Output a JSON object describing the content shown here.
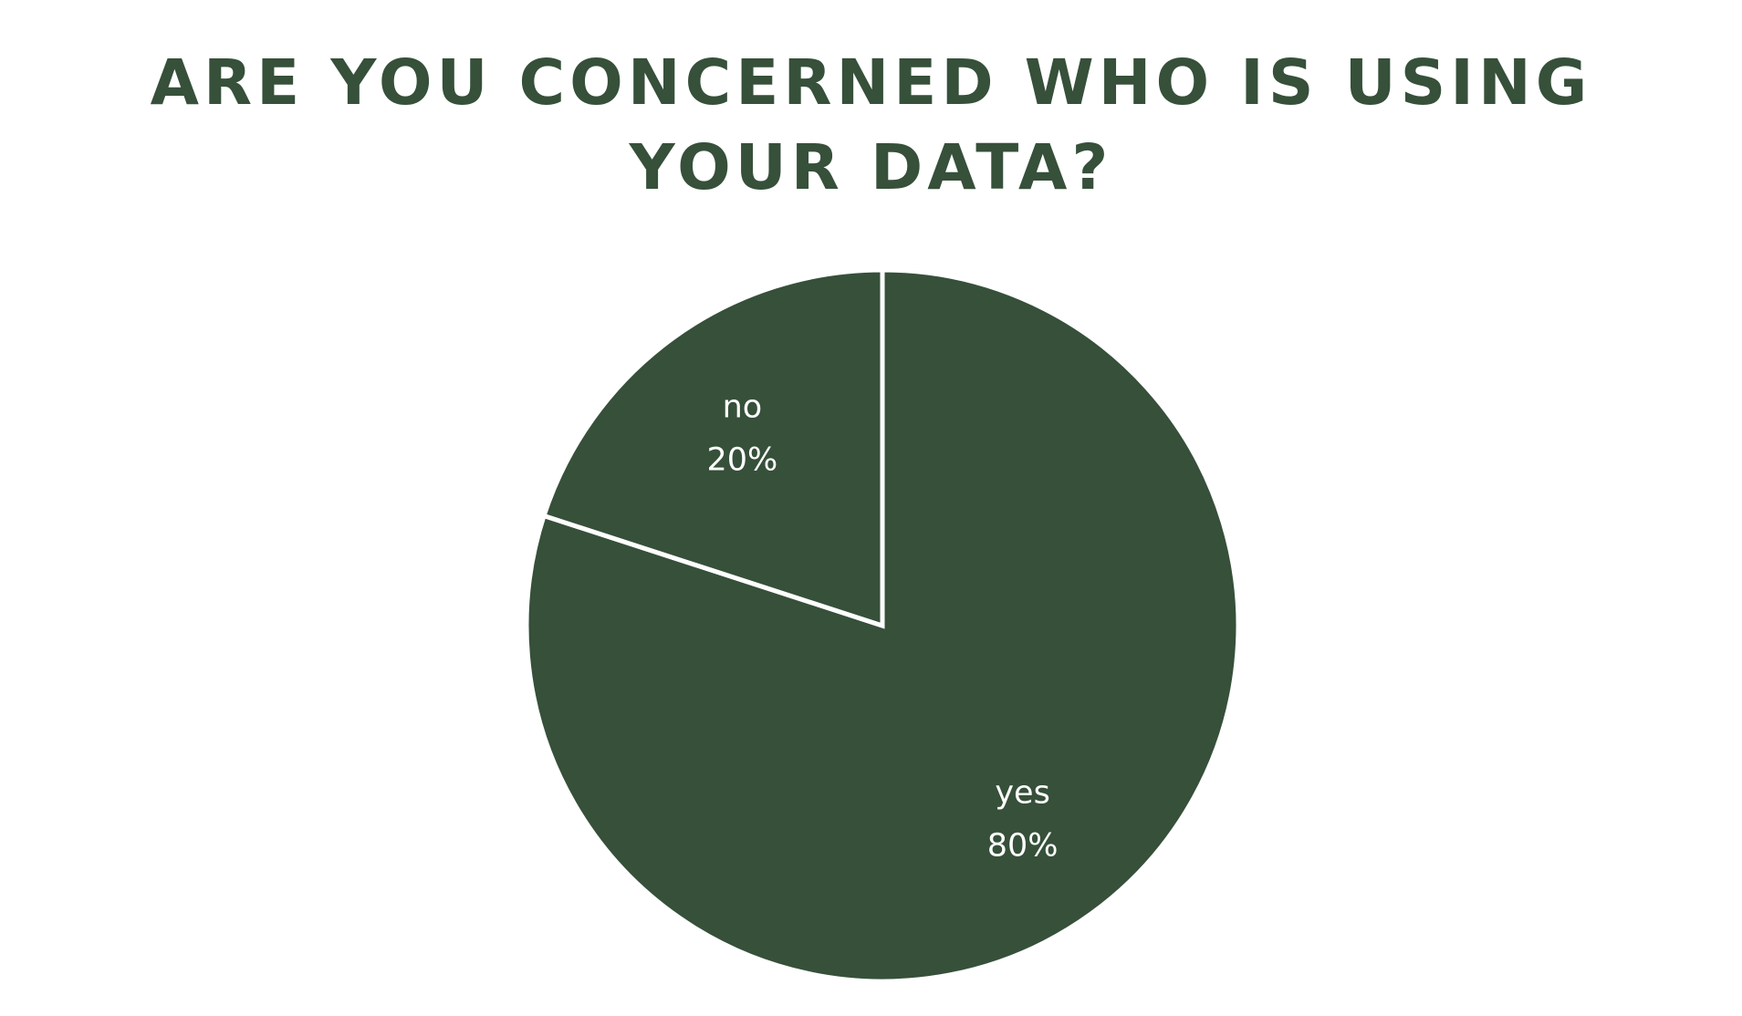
{
  "chart_data": {
    "type": "pie",
    "title": "ARE YOU CONCERNED WHO IS USING YOUR DATA?",
    "categories": [
      "yes",
      "no"
    ],
    "values": [
      80,
      20
    ],
    "value_labels": [
      "80%",
      "20%"
    ],
    "start_angle_deg": 0,
    "direction": "clockwise",
    "legend": "none",
    "colors": {
      "slice_fill": "#36503a",
      "slice_border": "#ffffff",
      "title": "#36503a",
      "label": "#ffffff"
    }
  }
}
